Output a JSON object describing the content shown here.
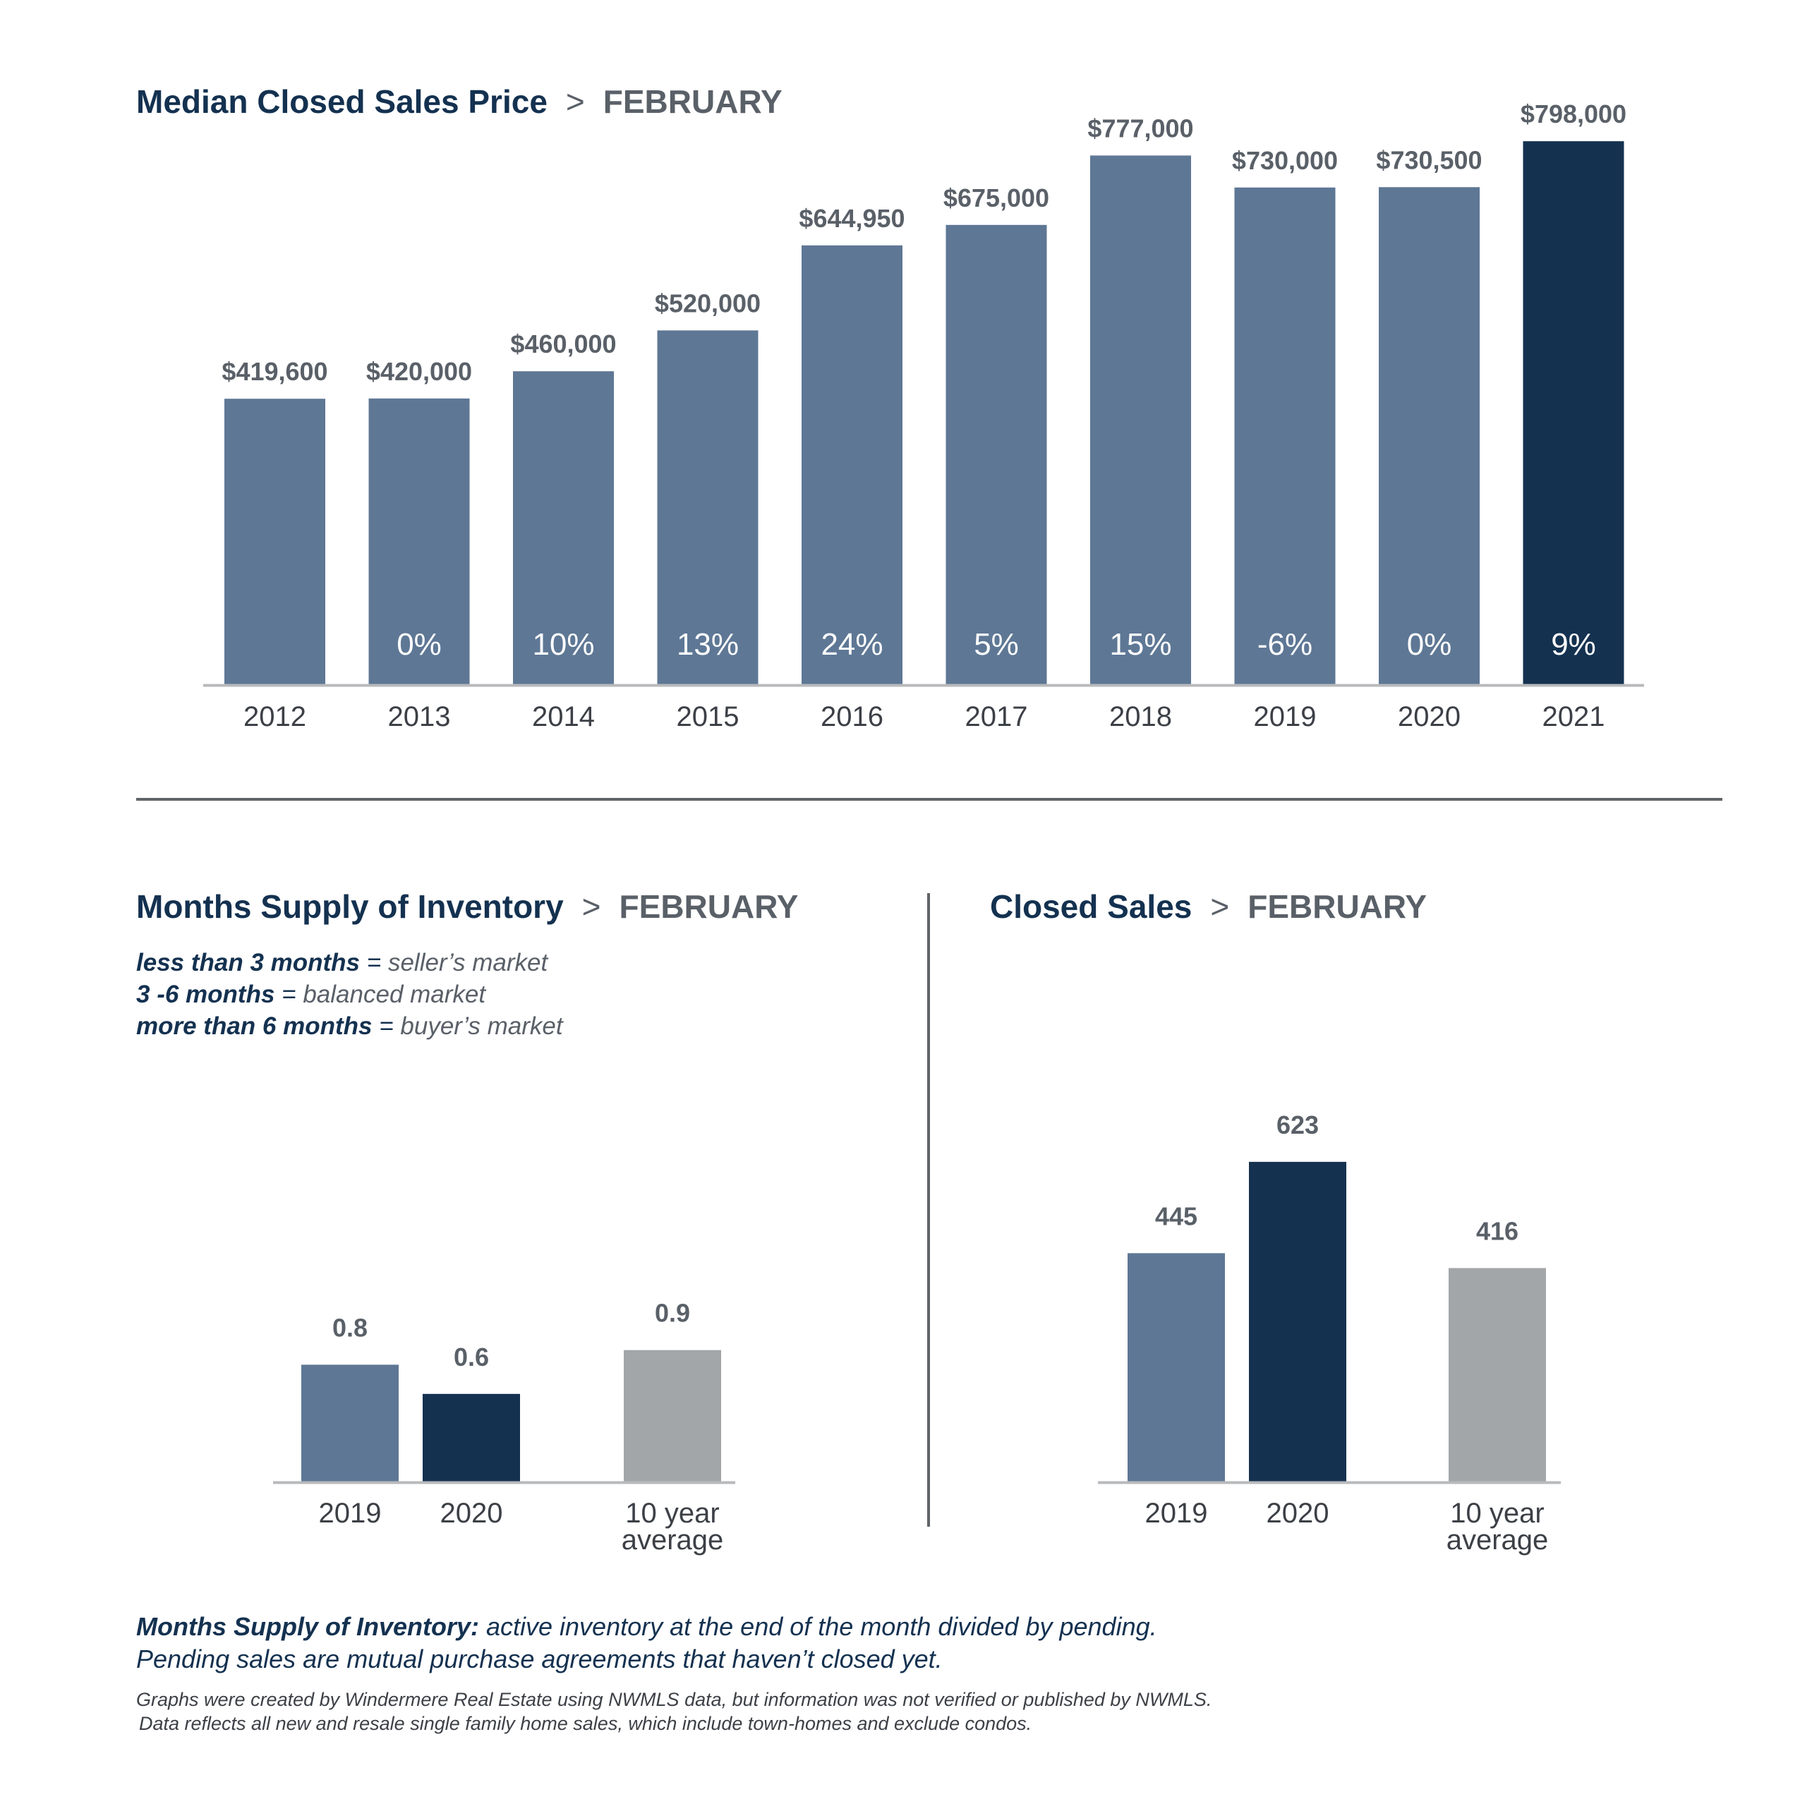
{
  "palette": {
    "past": "#5e7795",
    "current": "#143150",
    "average": "#a3a6a9",
    "axis": "#b8babc",
    "label": "#5a6068"
  },
  "title_month": "FEBRUARY",
  "title_separator": ">",
  "chart_data": [
    {
      "type": "bar",
      "title": "Median Closed Sales Price",
      "subtitle": "FEBRUARY",
      "categories": [
        "2012",
        "2013",
        "2014",
        "2015",
        "2016",
        "2017",
        "2018",
        "2019",
        "2020",
        "2021"
      ],
      "values": [
        419600,
        420000,
        460000,
        520000,
        644950,
        675000,
        777000,
        730000,
        730500,
        798000
      ],
      "value_labels": [
        "$419,600",
        "$420,000",
        "$460,000",
        "$520,000",
        "$644,950",
        "$675,000",
        "$777,000",
        "$730,000",
        "$730,500",
        "$798,000"
      ],
      "change_labels": [
        "",
        "0%",
        "10%",
        "13%",
        "24%",
        "5%",
        "15%",
        "-6%",
        "0%",
        "9%"
      ],
      "highlight_index": 9,
      "ylim": [
        0,
        850000
      ],
      "grid": false
    },
    {
      "type": "bar",
      "title": "Months Supply of Inventory",
      "subtitle": "FEBRUARY",
      "categories": [
        "2019",
        "2020",
        "10 year average"
      ],
      "values": [
        0.8,
        0.6,
        0.9
      ],
      "value_labels": [
        "0.8",
        "0.6",
        "0.9"
      ],
      "ylim": [
        0,
        4
      ],
      "grid": false
    },
    {
      "type": "bar",
      "title": "Closed Sales",
      "subtitle": "FEBRUARY",
      "categories": [
        "2019",
        "2020",
        "10 year average"
      ],
      "values": [
        445,
        623,
        416
      ],
      "value_labels": [
        "445",
        "623",
        "416"
      ],
      "ylim": [
        0,
        1500
      ],
      "grid": false
    }
  ],
  "legend": [
    {
      "key": "less than 3 months",
      "eq": "=",
      "value": "seller’s market"
    },
    {
      "key": "3 -6 months",
      "eq": "=",
      "value": "balanced market"
    },
    {
      "key": "more than 6 months",
      "eq": "=",
      "value": "buyer’s market"
    }
  ],
  "footnote": {
    "term": "Months Supply of Inventory:",
    "definition": " active inventory at the end of the month divided by pending.",
    "line2": "Pending sales are mutual purchase agreements that haven’t closed yet."
  },
  "source": {
    "line1": "Graphs were created by Windermere Real Estate using NWMLS data, but information was not verified or published by NWMLS.",
    "line2": "Data reflects all new and resale single family home sales, which include town-homes and exclude condos."
  }
}
